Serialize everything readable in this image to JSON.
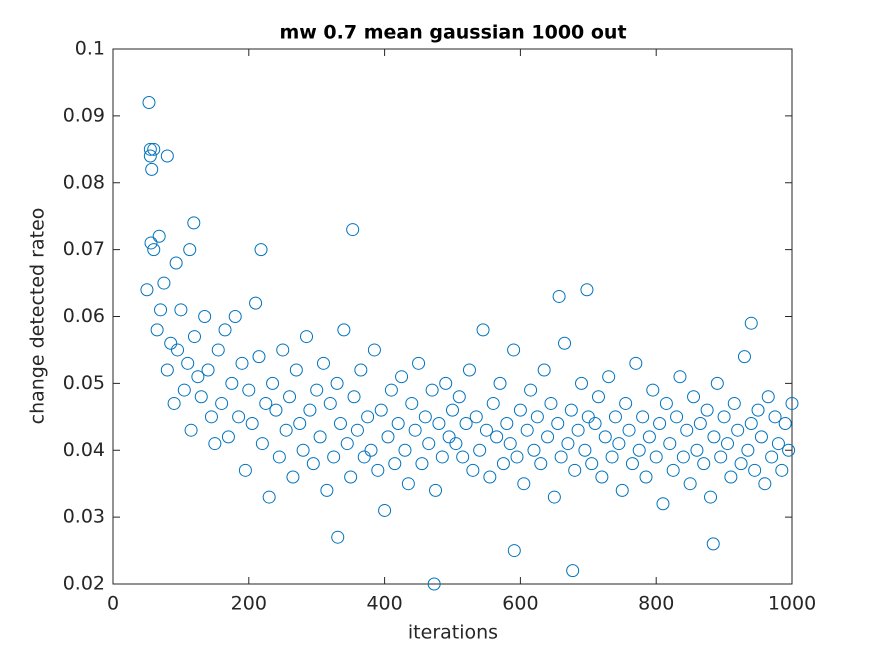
{
  "chart_data": {
    "type": "scatter",
    "title": "mw 0.7 mean gaussian 1000 out",
    "xlabel": "iterations",
    "ylabel": "change detected rateo",
    "color": "#0072bd",
    "xlim": [
      0,
      1000
    ],
    "xticks": [
      0,
      200,
      400,
      600,
      800,
      1000
    ],
    "ylim": [
      0.02,
      0.1
    ],
    "yticks": [
      0.02,
      0.03,
      0.04,
      0.05,
      0.06,
      0.07,
      0.08,
      0.09,
      0.1
    ],
    "x": [
      50,
      55,
      60,
      65,
      70,
      75,
      80,
      85,
      90,
      95,
      100,
      105,
      110,
      115,
      120,
      125,
      130,
      135,
      140,
      145,
      150,
      155,
      160,
      165,
      170,
      175,
      180,
      185,
      190,
      195,
      200,
      205,
      210,
      215,
      220,
      225,
      230,
      235,
      240,
      245,
      250,
      255,
      260,
      265,
      270,
      275,
      280,
      285,
      290,
      295,
      300,
      305,
      310,
      315,
      320,
      325,
      330,
      335,
      340,
      345,
      350,
      355,
      360,
      365,
      370,
      375,
      380,
      385,
      390,
      395,
      400,
      405,
      410,
      415,
      420,
      425,
      430,
      435,
      440,
      445,
      450,
      455,
      460,
      465,
      470,
      475,
      480,
      485,
      490,
      495,
      500,
      505,
      510,
      515,
      520,
      525,
      530,
      535,
      540,
      545,
      550,
      555,
      560,
      565,
      570,
      575,
      580,
      585,
      590,
      595,
      600,
      605,
      610,
      615,
      620,
      625,
      630,
      635,
      640,
      645,
      650,
      655,
      660,
      665,
      670,
      675,
      680,
      685,
      690,
      695,
      700,
      705,
      710,
      715,
      720,
      725,
      730,
      735,
      740,
      745,
      750,
      755,
      760,
      765,
      770,
      775,
      780,
      785,
      790,
      795,
      800,
      805,
      810,
      815,
      820,
      825,
      830,
      835,
      840,
      845,
      850,
      855,
      860,
      865,
      870,
      875,
      880,
      885,
      890,
      895,
      900,
      905,
      910,
      915,
      920,
      925,
      930,
      935,
      940,
      945,
      950,
      955,
      960,
      965,
      970,
      975,
      980,
      985,
      990,
      995,
      1000,
      53,
      55,
      60,
      57,
      80,
      56,
      119,
      113,
      218,
      93,
      353,
      657,
      698,
      473,
      677,
      591,
      331,
      884,
      940,
      68
    ],
    "y": [
      0.064,
      0.085,
      0.07,
      0.058,
      0.061,
      0.065,
      0.052,
      0.056,
      0.047,
      0.055,
      0.061,
      0.049,
      0.053,
      0.043,
      0.057,
      0.051,
      0.048,
      0.06,
      0.052,
      0.045,
      0.041,
      0.055,
      0.047,
      0.058,
      0.042,
      0.05,
      0.06,
      0.045,
      0.053,
      0.037,
      0.049,
      0.044,
      0.062,
      0.054,
      0.041,
      0.047,
      0.033,
      0.05,
      0.046,
      0.039,
      0.055,
      0.043,
      0.048,
      0.036,
      0.052,
      0.044,
      0.04,
      0.057,
      0.046,
      0.038,
      0.049,
      0.042,
      0.053,
      0.034,
      0.047,
      0.039,
      0.05,
      0.044,
      0.058,
      0.041,
      0.036,
      0.048,
      0.043,
      0.052,
      0.039,
      0.045,
      0.04,
      0.055,
      0.037,
      0.046,
      0.031,
      0.042,
      0.049,
      0.038,
      0.044,
      0.051,
      0.04,
      0.035,
      0.047,
      0.043,
      0.053,
      0.038,
      0.045,
      0.041,
      0.049,
      0.034,
      0.044,
      0.039,
      0.05,
      0.042,
      0.046,
      0.041,
      0.048,
      0.039,
      0.044,
      0.052,
      0.037,
      0.045,
      0.04,
      0.058,
      0.043,
      0.036,
      0.047,
      0.042,
      0.05,
      0.038,
      0.044,
      0.041,
      0.055,
      0.039,
      0.046,
      0.035,
      0.043,
      0.049,
      0.04,
      0.045,
      0.038,
      0.052,
      0.042,
      0.047,
      0.033,
      0.044,
      0.039,
      0.056,
      0.041,
      0.046,
      0.037,
      0.043,
      0.05,
      0.04,
      0.045,
      0.038,
      0.044,
      0.048,
      0.036,
      0.042,
      0.051,
      0.039,
      0.045,
      0.041,
      0.034,
      0.047,
      0.043,
      0.038,
      0.053,
      0.04,
      0.045,
      0.036,
      0.042,
      0.049,
      0.039,
      0.044,
      0.032,
      0.047,
      0.041,
      0.037,
      0.045,
      0.051,
      0.039,
      0.043,
      0.035,
      0.048,
      0.04,
      0.044,
      0.038,
      0.046,
      0.033,
      0.042,
      0.05,
      0.039,
      0.045,
      0.041,
      0.036,
      0.047,
      0.043,
      0.038,
      0.054,
      0.04,
      0.044,
      0.037,
      0.046,
      0.042,
      0.035,
      0.048,
      0.039,
      0.045,
      0.041,
      0.037,
      0.044,
      0.04,
      0.047,
      0.092,
      0.084,
      0.085,
      0.082,
      0.084,
      0.071,
      0.074,
      0.07,
      0.07,
      0.068,
      0.073,
      0.063,
      0.064,
      0.02,
      0.022,
      0.025,
      0.027,
      0.026,
      0.059,
      0.072
    ]
  }
}
